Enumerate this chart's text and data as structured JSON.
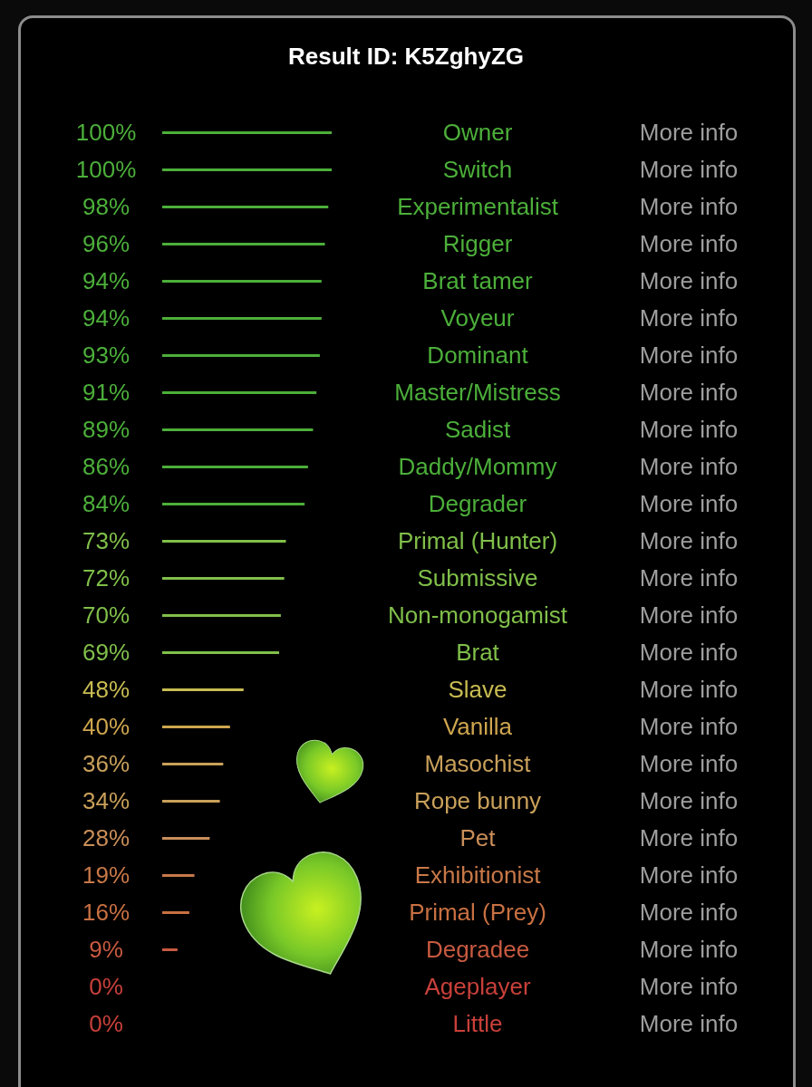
{
  "chart_data": {
    "type": "bar",
    "orientation": "horizontal",
    "title": "Result ID: K5ZghyZG",
    "categories": [
      "Owner",
      "Switch",
      "Experimentalist",
      "Rigger",
      "Brat tamer",
      "Voyeur",
      "Dominant",
      "Master/Mistress",
      "Sadist",
      "Daddy/Mommy",
      "Degrader",
      "Primal (Hunter)",
      "Submissive",
      "Non-monogamist",
      "Brat",
      "Slave",
      "Vanilla",
      "Masochist",
      "Rope bunny",
      "Pet",
      "Exhibitionist",
      "Primal (Prey)",
      "Degradee",
      "Ageplayer",
      "Little"
    ],
    "values": [
      100,
      100,
      98,
      96,
      94,
      94,
      93,
      91,
      89,
      86,
      84,
      73,
      72,
      70,
      69,
      48,
      40,
      36,
      34,
      28,
      19,
      16,
      9,
      0,
      0
    ],
    "value_labels": [
      "100%",
      "100%",
      "98%",
      "96%",
      "94%",
      "94%",
      "93%",
      "91%",
      "89%",
      "86%",
      "84%",
      "73%",
      "72%",
      "70%",
      "69%",
      "48%",
      "40%",
      "36%",
      "34%",
      "28%",
      "19%",
      "16%",
      "9%",
      "0%",
      "0%"
    ],
    "colors": [
      "#4caf3a",
      "#4caf3a",
      "#4caf3a",
      "#4caf3a",
      "#4caf3a",
      "#4caf3a",
      "#4caf3a",
      "#4caf3a",
      "#4caf3a",
      "#4caf3a",
      "#4caf3a",
      "#80bf4a",
      "#80bf4a",
      "#80bf4a",
      "#80bf4a",
      "#c8bc52",
      "#cfa64e",
      "#c9a05a",
      "#c9a05a",
      "#c98e58",
      "#c87848",
      "#c87042",
      "#c85a40",
      "#c8403a",
      "#c8403a"
    ],
    "annotations": [
      "More info",
      "More info",
      "More info",
      "More info",
      "More info",
      "More info",
      "More info",
      "More info",
      "More info",
      "More info",
      "More info",
      "More info",
      "More info",
      "More info",
      "More info",
      "More info",
      "More info",
      "More info",
      "More info",
      "More info",
      "More info",
      "More info",
      "More info",
      "More info",
      "More info"
    ]
  }
}
